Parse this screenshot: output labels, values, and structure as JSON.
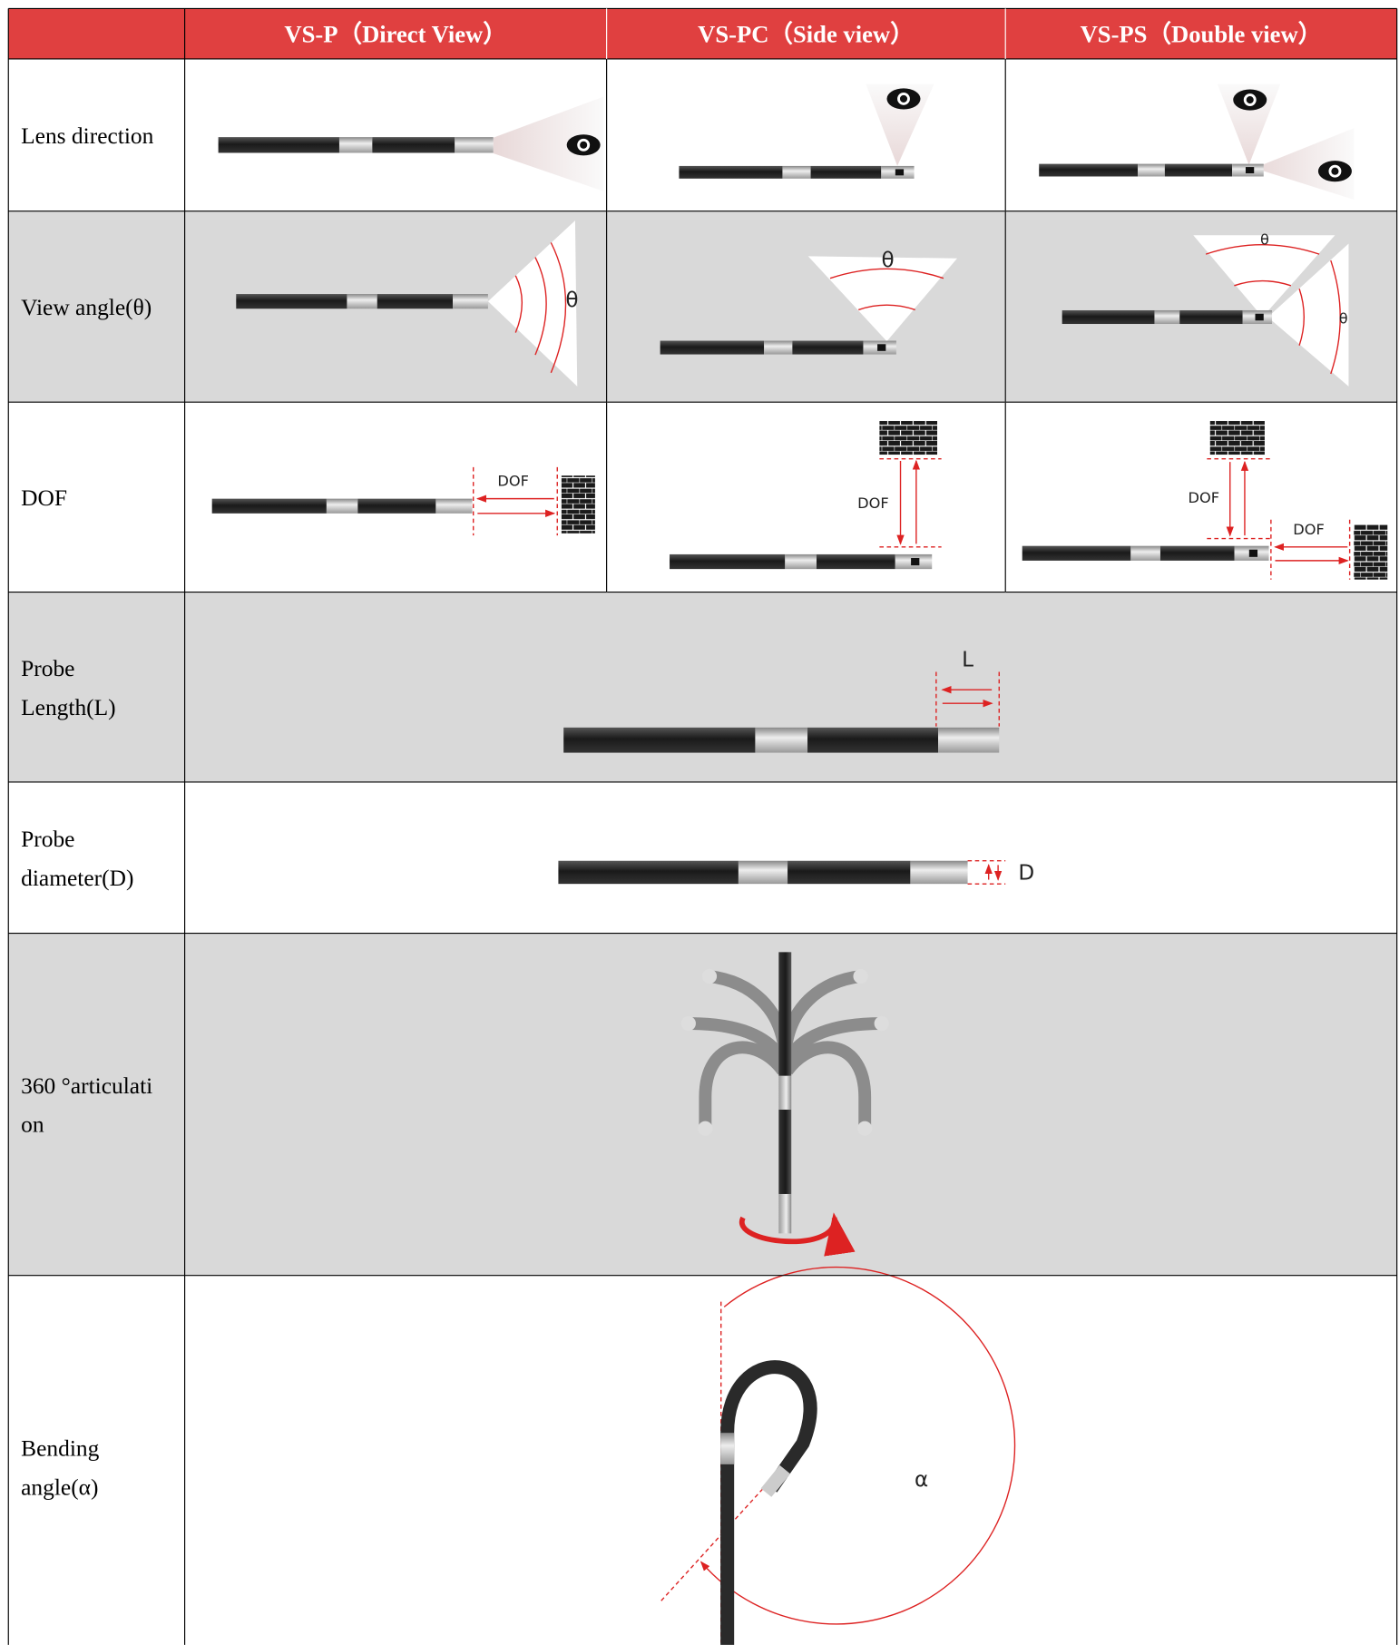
{
  "header": {
    "columns": [
      "VS-P（Direct View）",
      "VS-PC（Side view）",
      "VS-PS（Double view）"
    ]
  },
  "rows": [
    {
      "label": [
        "Lens direction"
      ]
    },
    {
      "label": [
        "View angle(θ)"
      ],
      "annotations": [
        "θ",
        "θ",
        "θ",
        "θ"
      ]
    },
    {
      "label": [
        "DOF"
      ],
      "annotations": [
        "DOF",
        "DOF",
        "DOF",
        "DOF"
      ]
    },
    {
      "label": [
        "Probe",
        "Length(L)"
      ],
      "annotations": [
        "L"
      ]
    },
    {
      "label": [
        "Probe",
        "diameter(D)"
      ],
      "annotations": [
        "D"
      ]
    },
    {
      "label": [
        "360 °articulati",
        "on"
      ]
    },
    {
      "label": [
        "Bending",
        "angle(α)"
      ],
      "annotations": [
        "α"
      ]
    }
  ]
}
